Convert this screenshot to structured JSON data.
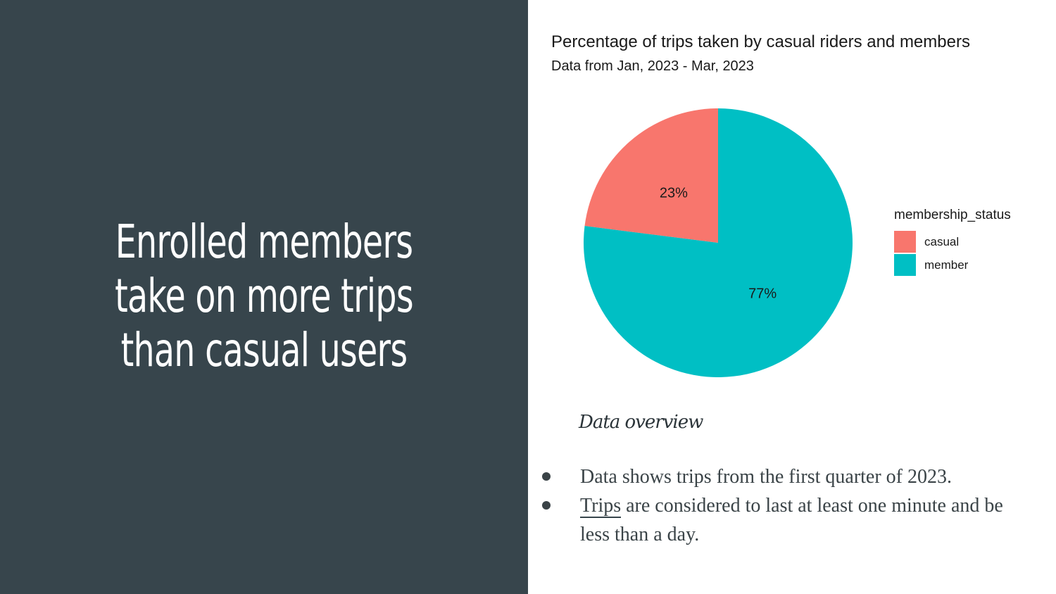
{
  "slide": {
    "headline": "Enrolled members take on more trips than casual users",
    "overview_title": "Data overview",
    "bullets": [
      {
        "first_word": "Data",
        "rest": " shows trips from the first quarter of 2023."
      },
      {
        "first_word": "Trips",
        "rest": " are considered to last at least one minute and be less than a day."
      }
    ],
    "colors": {
      "left_panel": "#37454c",
      "casual": "#f8766d",
      "member": "#00bfc4"
    }
  },
  "chart_data": {
    "type": "pie",
    "title": "Percentage of trips taken by casual riders and members",
    "subtitle": "Data from Jan, 2023 - Mar, 2023",
    "legend_title": "membership_status",
    "legend_position": "right",
    "categories": [
      "casual",
      "member"
    ],
    "values": [
      23,
      77
    ],
    "labels": [
      "23%",
      "77%"
    ],
    "colors": [
      "#f8766d",
      "#00bfc4"
    ]
  }
}
